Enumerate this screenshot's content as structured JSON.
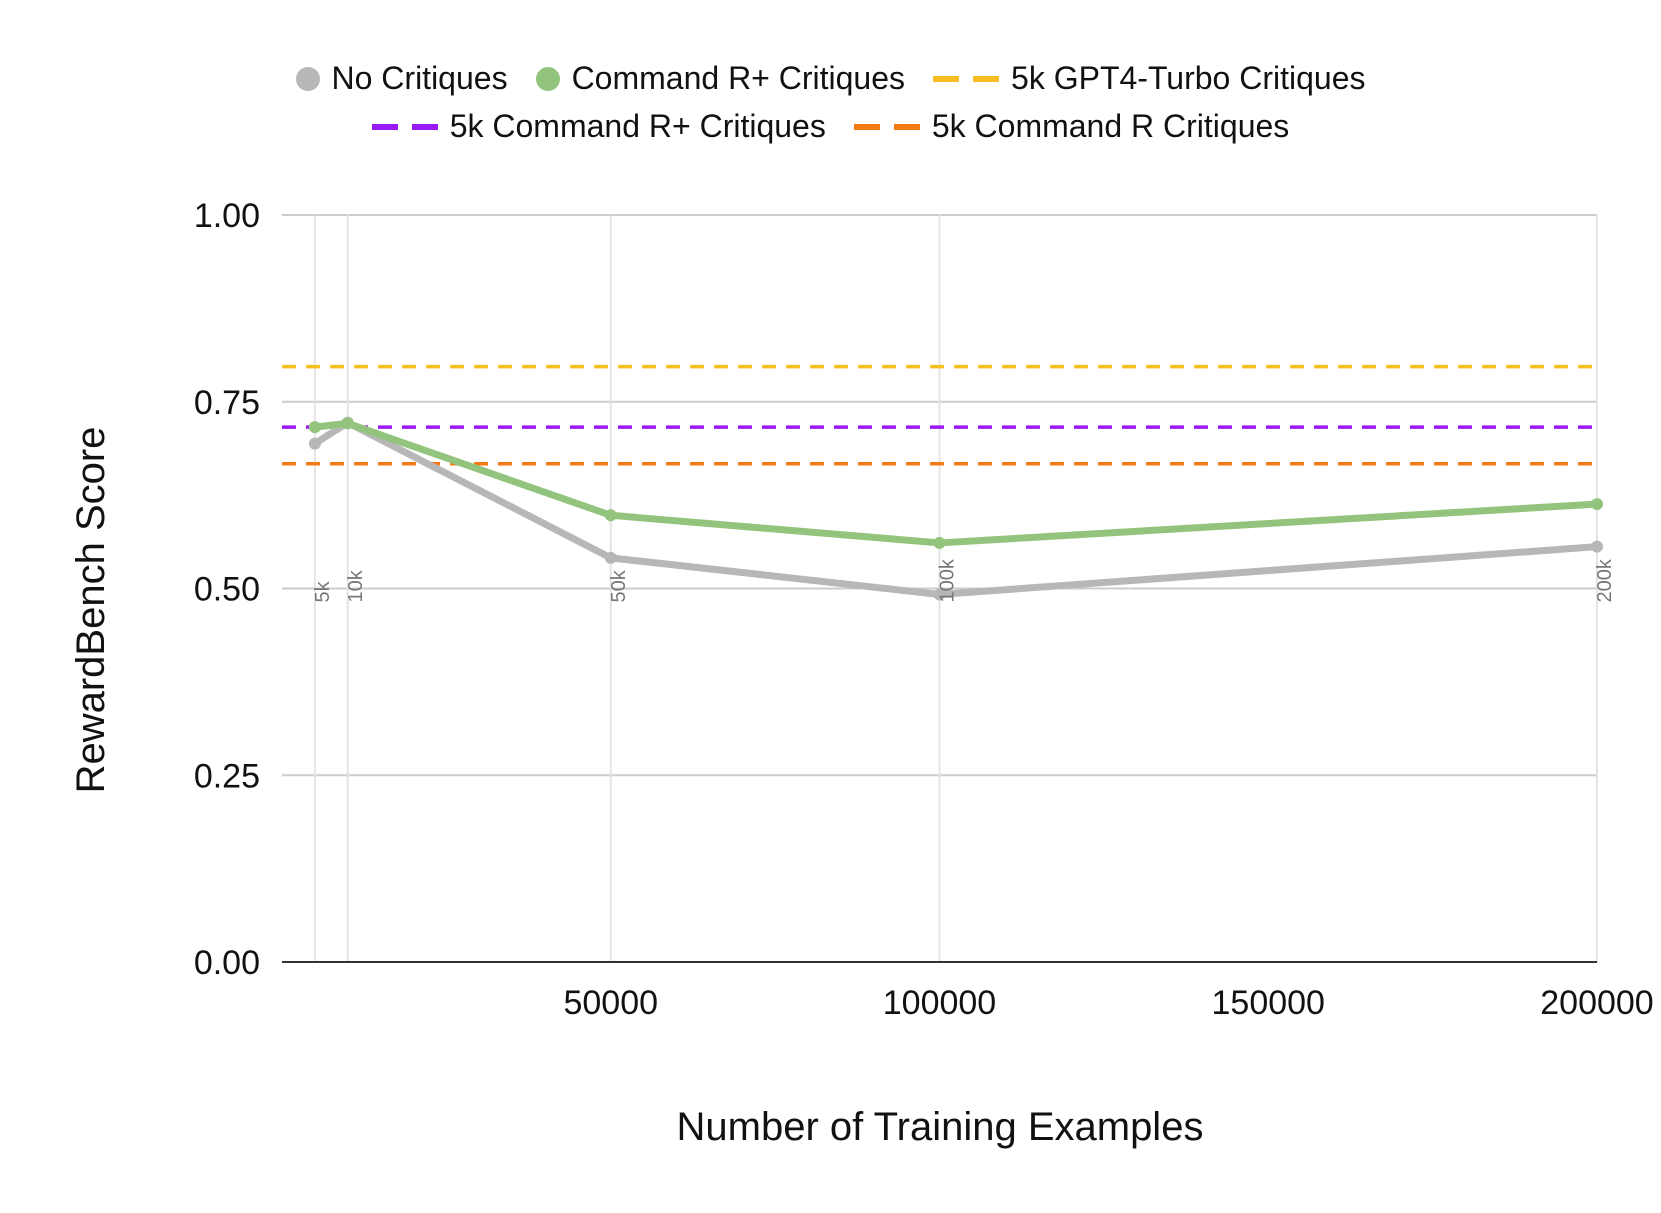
{
  "chart_data": {
    "type": "line",
    "xlabel": "Number of Training Examples",
    "ylabel": "RewardBench Score",
    "xlim": [
      0,
      200000
    ],
    "ylim": [
      0,
      1
    ],
    "x_ticks": [
      "50000",
      "100000",
      "150000",
      "200000"
    ],
    "y_ticks": [
      "0.00",
      "0.25",
      "0.50",
      "0.75",
      "1.00"
    ],
    "grid": true,
    "legend_position": "top",
    "point_annotations": [
      {
        "x": 5000,
        "label": "5k"
      },
      {
        "x": 10000,
        "label": "10k"
      },
      {
        "x": 50000,
        "label": "50k"
      },
      {
        "x": 100000,
        "label": "100k"
      },
      {
        "x": 200000,
        "label": "200k"
      }
    ],
    "series": [
      {
        "name": "No Critiques",
        "kind": "line",
        "color": "#b7b7b7",
        "x": [
          5000,
          10000,
          50000,
          100000,
          200000
        ],
        "values": [
          0.694,
          0.722,
          0.541,
          0.492,
          0.556
        ]
      },
      {
        "name": "Command R+ Critiques",
        "kind": "line",
        "color": "#93c47d",
        "x": [
          5000,
          10000,
          50000,
          100000,
          200000
        ],
        "values": [
          0.716,
          0.721,
          0.598,
          0.561,
          0.613
        ]
      }
    ],
    "reference_lines": [
      {
        "name": "5k GPT4-Turbo Critiques",
        "value": 0.797,
        "color": "#f6be22"
      },
      {
        "name": "5k Command R+ Critiques",
        "value": 0.716,
        "color": "#9b19f5"
      },
      {
        "name": "5k Command R Critiques",
        "value": 0.667,
        "color": "#f57a14"
      }
    ]
  }
}
